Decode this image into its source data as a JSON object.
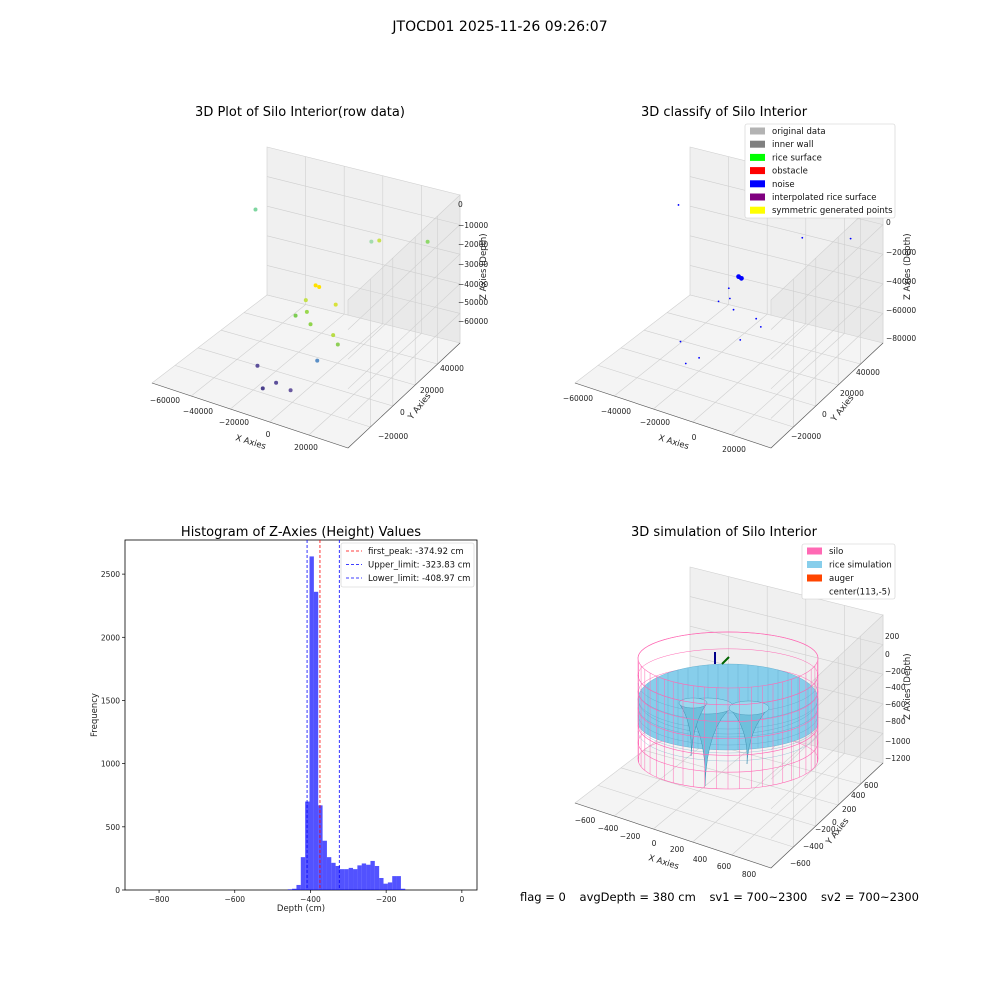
{
  "figure": {
    "suptitle": "JTOCD01 2025-11-26 09:26:07",
    "status": {
      "flag": "flag = 0",
      "avg_depth": "avgDepth = 380 cm",
      "sv1": "sv1 = 700~2300",
      "sv2": "sv2 = 700~2300"
    }
  },
  "colors": {
    "original_data": "#b3b3b3",
    "inner_wall": "#808080",
    "rice_surface": "#00ff00",
    "obstacle": "#ff0000",
    "noise": "#0000ff",
    "interpolated_rice_surface": "#800080",
    "symmetric_generated_points": "#ffff00",
    "histogram": "#0000ff",
    "silo": "#ff69b4",
    "rice_simulation": "#87ceeb",
    "auger": "#ff4500"
  },
  "chart_data": [
    {
      "type": "scatter",
      "title": "3D Plot of Silo Interior(row data)",
      "xlabel": "X Axies",
      "ylabel": "Y Axies",
      "zlabel": "Z Axies (Depth)",
      "x_ticks": [
        "−60000",
        "−40000",
        "−20000",
        "0",
        "20000"
      ],
      "y_ticks": [
        "−20000",
        "0",
        "20000",
        "40000"
      ],
      "z_ticks": [
        "0",
        "−10000",
        "−20000",
        "−30000",
        "−40000",
        "−50000",
        "−60000"
      ],
      "points": [
        {
          "x": -52000,
          "y": 25000,
          "z": -7000,
          "color": "#7fd6a0"
        },
        {
          "x": -8000,
          "y": 5000,
          "z": -18000,
          "color": "#ffe100"
        },
        {
          "x": -7000,
          "y": 6000,
          "z": -19000,
          "color": "#ffe100"
        },
        {
          "x": -12000,
          "y": 4000,
          "z": -26000,
          "color": "#c4e04a"
        },
        {
          "x": -10000,
          "y": 2000,
          "z": -30000,
          "color": "#9ad84e"
        },
        {
          "x": -14000,
          "y": 0,
          "z": -32000,
          "color": "#7ccd52"
        },
        {
          "x": -6000,
          "y": -1000,
          "z": -33000,
          "color": "#90d44c"
        },
        {
          "x": 1000,
          "y": 6000,
          "z": -25000,
          "color": "#d8e23a"
        },
        {
          "x": 2000,
          "y": 3000,
          "z": -38000,
          "color": "#b8dc44"
        },
        {
          "x": 5000,
          "y": 2000,
          "z": -41000,
          "color": "#8ecf56"
        },
        {
          "x": -2000,
          "y": -2000,
          "z": -49000,
          "color": "#5a8fc6"
        },
        {
          "x": 8000,
          "y": 25000,
          "z": -2000,
          "color": "#c9e050"
        },
        {
          "x": 24000,
          "y": 35000,
          "z": -3000,
          "color": "#8ed86a"
        },
        {
          "x": -4000,
          "y": 36000,
          "z": -13000,
          "color": "#a4dcae"
        },
        {
          "x": -28000,
          "y": -6000,
          "z": -58000,
          "color": "#5c4f9a"
        },
        {
          "x": -16000,
          "y": -10000,
          "z": -60000,
          "color": "#5c4f9a"
        },
        {
          "x": -18000,
          "y": -16000,
          "z": -60000,
          "color": "#4a3f8c"
        },
        {
          "x": -6000,
          "y": -14000,
          "z": -58000,
          "color": "#6a5aa0"
        }
      ]
    },
    {
      "type": "scatter",
      "title": "3D classify of Silo Interior",
      "xlabel": "X Axies",
      "ylabel": "Y Axies",
      "zlabel": "Z Axies (Depth)",
      "x_ticks": [
        "−60000",
        "−40000",
        "−20000",
        "0",
        "20000"
      ],
      "y_ticks": [
        "−20000",
        "0",
        "20000",
        "40000"
      ],
      "z_ticks": [
        "0",
        "−20000",
        "−40000",
        "−60000",
        "−80000"
      ],
      "legend_position": "top-right",
      "legend": [
        {
          "label": "original data",
          "color": "#b3b3b3"
        },
        {
          "label": "inner wall",
          "color": "#808080"
        },
        {
          "label": "rice surface",
          "color": "#00ff00"
        },
        {
          "label": "obstacle",
          "color": "#ff0000"
        },
        {
          "label": "noise",
          "color": "#0000ff"
        },
        {
          "label": "interpolated rice surface",
          "color": "#800080"
        },
        {
          "label": "symmetric generated points",
          "color": "#ffff00"
        }
      ],
      "points": [
        {
          "x": -8000,
          "y": 5000,
          "z": -18000
        },
        {
          "x": -7000,
          "y": 5500,
          "z": -19000
        },
        {
          "x": -12000,
          "y": 4000,
          "z": -26000
        },
        {
          "x": -10000,
          "y": 2000,
          "z": -30000
        },
        {
          "x": -14000,
          "y": 0,
          "z": -32000
        },
        {
          "x": -6000,
          "y": -1000,
          "z": -33000
        },
        {
          "x": 2000,
          "y": 3000,
          "z": -38000
        },
        {
          "x": 5000,
          "y": 2000,
          "z": -41000
        },
        {
          "x": -2000,
          "y": -2000,
          "z": -49000
        },
        {
          "x": 8000,
          "y": 25000,
          "z": -2000
        },
        {
          "x": 24000,
          "y": 35000,
          "z": -3000
        },
        {
          "x": -52000,
          "y": 25000,
          "z": -7000
        },
        {
          "x": -28000,
          "y": -6000,
          "z": -58000
        },
        {
          "x": -16000,
          "y": -10000,
          "z": -60000
        },
        {
          "x": -18000,
          "y": -16000,
          "z": -60000
        }
      ]
    },
    {
      "type": "bar",
      "title": "Histogram of Z-Axies (Height) Values",
      "xlabel": "Depth (cm)",
      "ylabel": "Frequency",
      "xlim": [
        -890,
        40
      ],
      "ylim": [
        0,
        2770
      ],
      "x_ticks": [
        -800,
        -600,
        -400,
        -200,
        0
      ],
      "y_ticks": [
        0,
        500,
        1000,
        1500,
        2000,
        2500
      ],
      "bin_width": 11.5,
      "bin_start": -460,
      "values": [
        5,
        10,
        40,
        260,
        700,
        2640,
        2360,
        670,
        390,
        260,
        215,
        190,
        165,
        165,
        175,
        165,
        195,
        210,
        200,
        230,
        190,
        95,
        50,
        60,
        110,
        110,
        10
      ],
      "lines": [
        {
          "label": "first_peak: -374.92 cm",
          "value": -374.92,
          "color": "#ff0000"
        },
        {
          "label": "Upper_limit: -323.83 cm",
          "value": -323.83,
          "color": "#0000ff"
        },
        {
          "label": "Lower_limit: -408.97 cm",
          "value": -408.97,
          "color": "#0000ff"
        }
      ],
      "legend_position": "top-right"
    },
    {
      "type": "surface",
      "title": "3D simulation of Silo Interior",
      "xlabel": "X Axies",
      "ylabel": "Y Axies",
      "zlabel": "Z Axies (Depth)",
      "x_ticks": [
        "−600",
        "−400",
        "−200",
        "0",
        "200",
        "400",
        "600",
        "800"
      ],
      "y_ticks": [
        "−600",
        "−400",
        "−200",
        "0",
        "200",
        "400",
        "600"
      ],
      "z_ticks": [
        "200",
        "0",
        "−200",
        "−400",
        "−600",
        "−800",
        "−1000",
        "−1200"
      ],
      "legend_position": "top-right",
      "legend": [
        {
          "label": "silo",
          "color": "#ff69b4"
        },
        {
          "label": "rice simulation",
          "color": "#87ceeb"
        },
        {
          "label": "auger",
          "color": "#ff4500"
        },
        {
          "label": "center(113,-5)",
          "color": "#ffffff"
        }
      ]
    }
  ]
}
